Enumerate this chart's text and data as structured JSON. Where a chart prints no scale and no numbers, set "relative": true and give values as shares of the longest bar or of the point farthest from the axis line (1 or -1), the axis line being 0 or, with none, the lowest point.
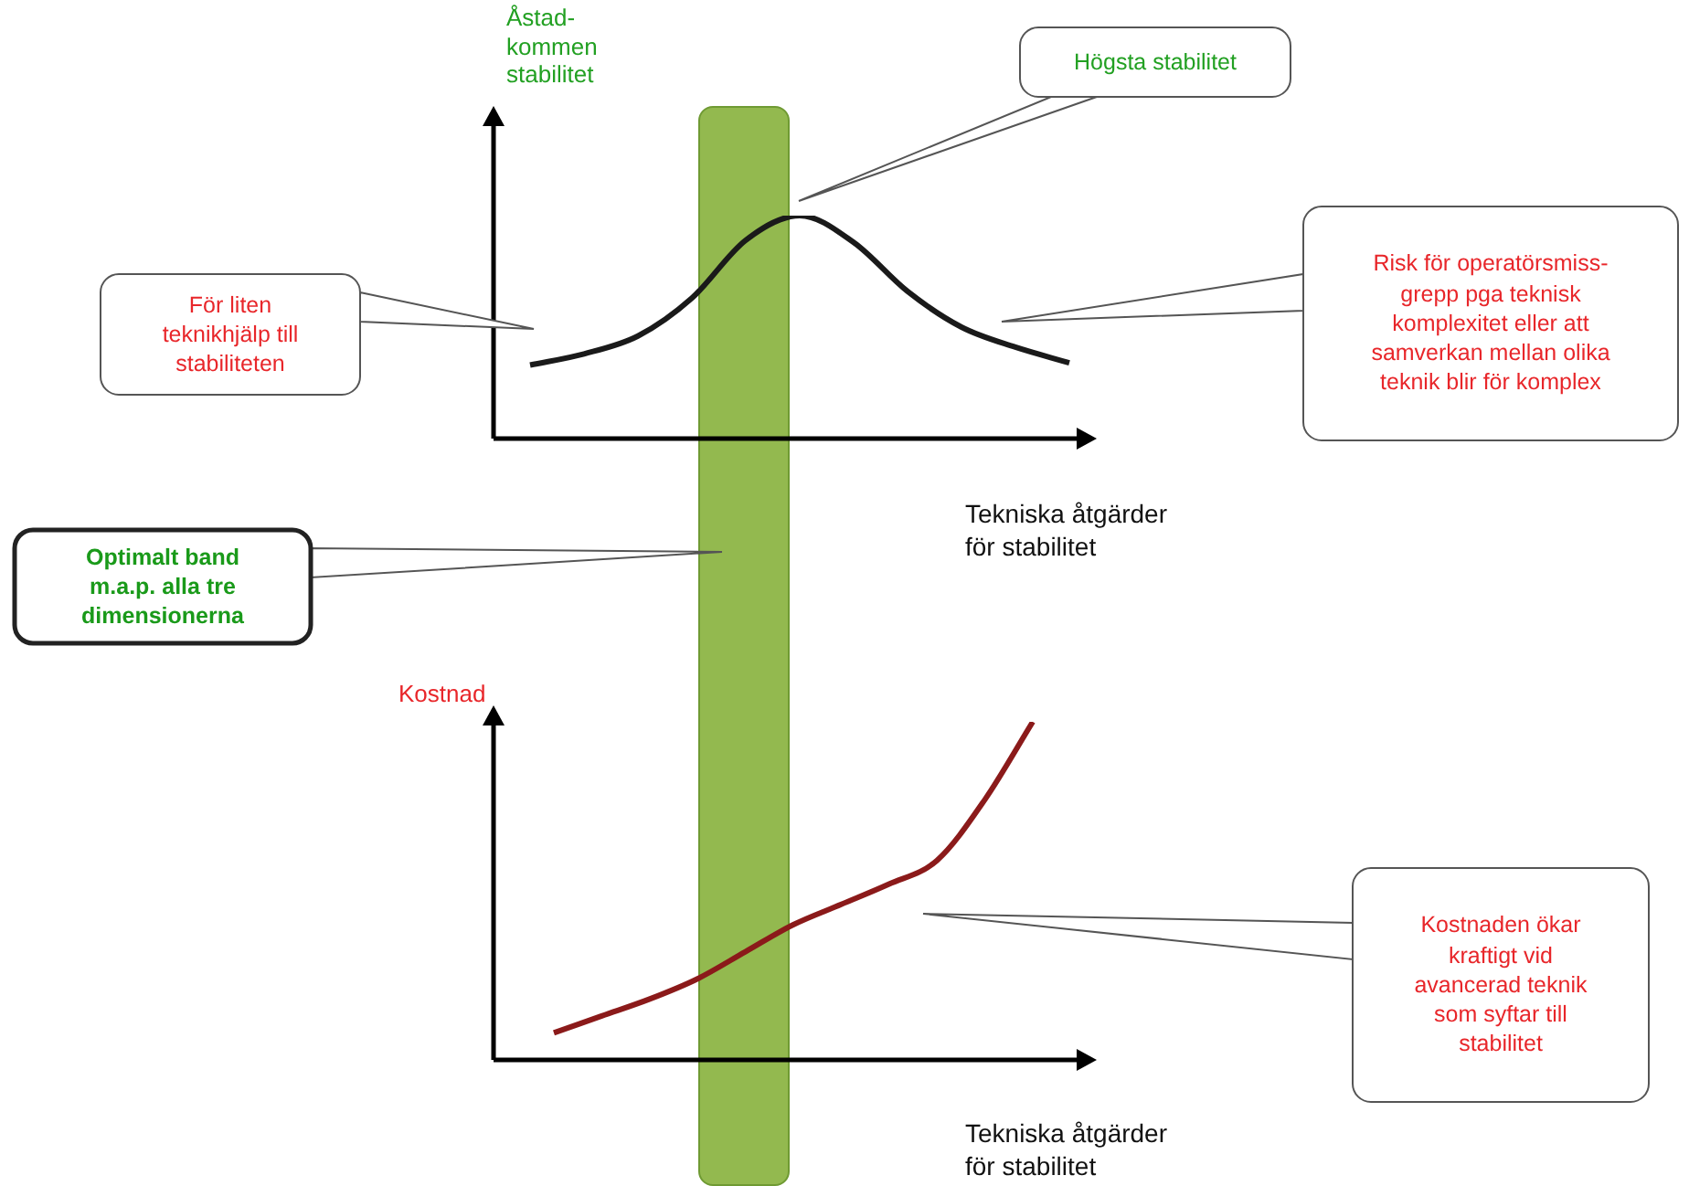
{
  "chart_data": [
    {
      "type": "line",
      "relative": true,
      "ylabel": "Åstad-\nkommen\nstabilitet",
      "xlabel": "Tekniska åtgärder\nför stabilitet",
      "categories": [
        null,
        null,
        null,
        null,
        null,
        null,
        null,
        null,
        null,
        null,
        null
      ],
      "series": [
        {
          "color": "#1a1a1a",
          "values": [
            0.33,
            0.38,
            0.46,
            0.63,
            0.89,
            1,
            0.88,
            0.66,
            0.5,
            0.41,
            0.34
          ]
        }
      ],
      "annotations": [
        "Högsta stabilitet",
        "För liten\nteknikhjälp till\nstabiliteten",
        "Risk för operatörsmiss-\ngrepp pga teknisk\nkomplexitet eller att\nsamverkan mellan olika\nteknik blir för komplex",
        "Optimalt band\nm.a.p. alla tre\ndimensionerna"
      ]
    },
    {
      "type": "line",
      "relative": true,
      "ylabel": "Kostnad",
      "xlabel": "Tekniska åtgärder\nför stabilitet",
      "categories": [
        null,
        null,
        null,
        null,
        null,
        null,
        null,
        null,
        null,
        null,
        null
      ],
      "series": [
        {
          "color": "#8b1a1a",
          "values": [
            0.08,
            0.13,
            0.18,
            0.24,
            0.32,
            0.4,
            0.46,
            0.52,
            0.59,
            0.77,
            1
          ]
        }
      ],
      "annotations": [
        "Kostnaden ökar\nkraftigt vid\navancerad teknik\nsom syftar till\nstabilitet"
      ]
    }
  ]
}
